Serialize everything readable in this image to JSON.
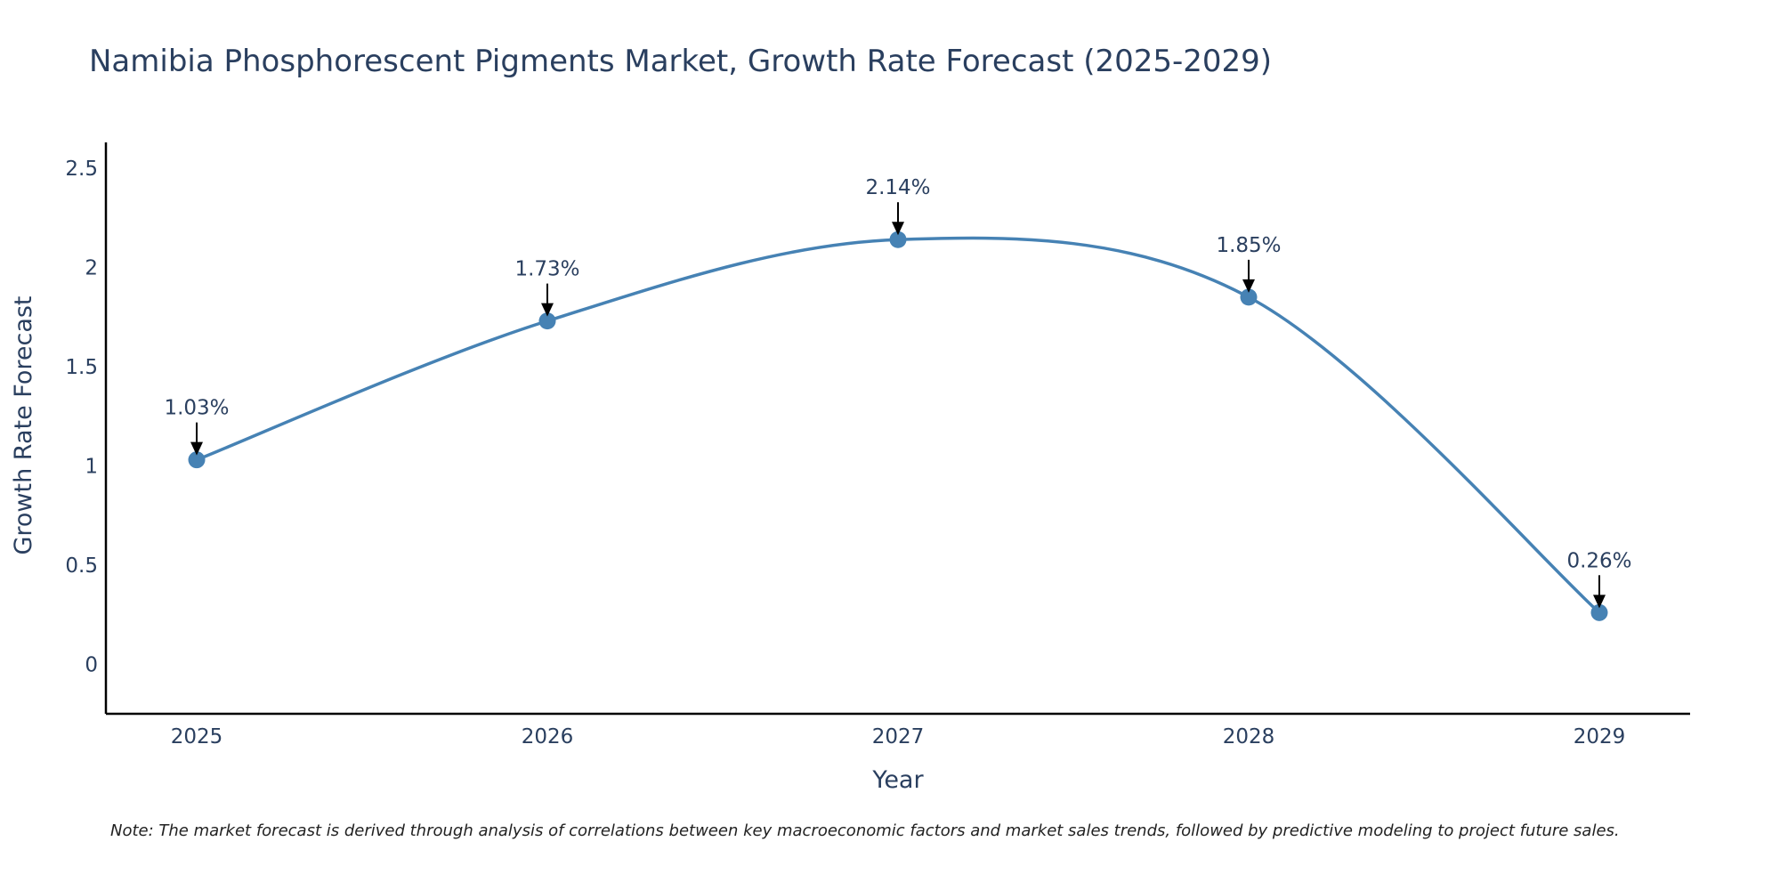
{
  "chart_data": {
    "type": "line",
    "title": "Namibia Phosphorescent Pigments Market, Growth Rate Forecast (2025-2029)",
    "xlabel": "Year",
    "ylabel": "Growth Rate Forecast",
    "x": [
      "2025",
      "2026",
      "2027",
      "2028",
      "2029"
    ],
    "series": [
      {
        "name": "Growth Rate Forecast",
        "values": [
          1.03,
          1.73,
          2.14,
          1.85,
          0.26
        ],
        "labels": [
          "1.03%",
          "1.73%",
          "2.14%",
          "1.85%",
          "0.26%"
        ]
      }
    ],
    "ylim": [
      -0.25,
      2.63
    ],
    "yticks": [
      0,
      0.5,
      1,
      1.5,
      2,
      2.5
    ],
    "ytick_labels": [
      "0",
      "0.5",
      "1",
      "1.5",
      "2",
      "2.5"
    ],
    "grid": false,
    "line_color": "#4682b4",
    "note": "Note: The market forecast is derived through analysis of correlations between key macroeconomic factors and market sales trends, followed by predictive modeling to project future sales."
  }
}
